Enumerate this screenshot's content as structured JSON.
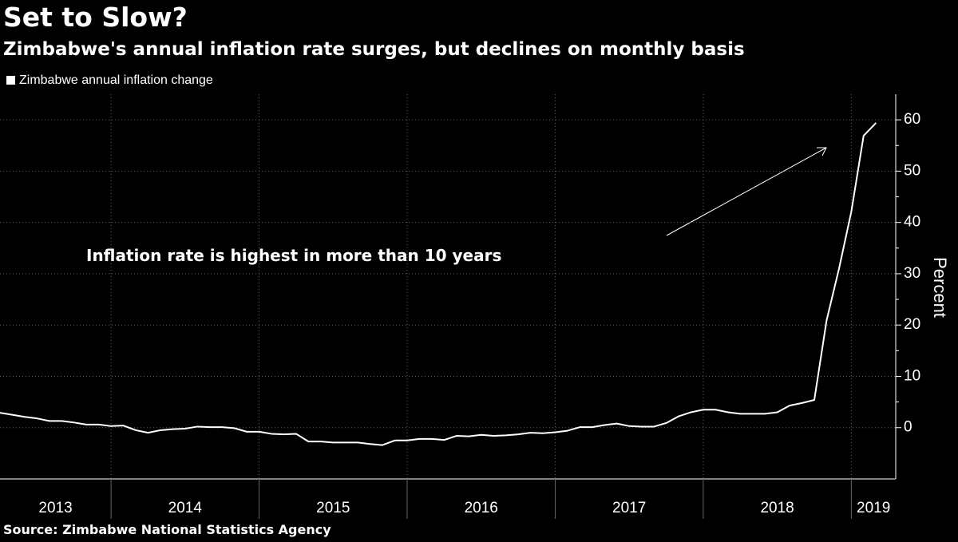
{
  "chart_data": {
    "type": "line",
    "title": "Set to Slow?",
    "subtitle": "Zimbabwe's annual inflation rate surges, but declines on monthly basis",
    "annotation": "Inflation rate is highest in more than 10 years",
    "y_axis_label": "Percent",
    "source": "Source: Zimbabwe National Statistics Agency",
    "x": [
      2013.25,
      2013.333,
      2013.417,
      2013.5,
      2013.583,
      2013.667,
      2013.75,
      2013.833,
      2013.917,
      2014.0,
      2014.083,
      2014.167,
      2014.25,
      2014.333,
      2014.417,
      2014.5,
      2014.583,
      2014.667,
      2014.75,
      2014.833,
      2014.917,
      2015.0,
      2015.083,
      2015.167,
      2015.25,
      2015.333,
      2015.417,
      2015.5,
      2015.583,
      2015.667,
      2015.75,
      2015.833,
      2015.917,
      2016.0,
      2016.083,
      2016.167,
      2016.25,
      2016.333,
      2016.417,
      2016.5,
      2016.583,
      2016.667,
      2016.75,
      2016.833,
      2016.917,
      2017.0,
      2017.083,
      2017.167,
      2017.25,
      2017.333,
      2017.417,
      2017.5,
      2017.583,
      2017.667,
      2017.75,
      2017.833,
      2017.917,
      2018.0,
      2018.083,
      2018.167,
      2018.25,
      2018.333,
      2018.417,
      2018.5,
      2018.583,
      2018.667,
      2018.75,
      2018.833,
      2018.917,
      2019.0,
      2019.083,
      2019.167
    ],
    "series": [
      {
        "name": "Zimbabwe annual inflation change",
        "color": "#ffffff",
        "values": [
          2.9,
          2.5,
          2.1,
          1.8,
          1.3,
          1.3,
          1.0,
          0.6,
          0.6,
          0.3,
          0.4,
          -0.5,
          -1.0,
          -0.5,
          -0.3,
          -0.2,
          0.2,
          0.1,
          0.1,
          -0.1,
          -0.8,
          -0.8,
          -1.2,
          -1.3,
          -1.2,
          -2.7,
          -2.7,
          -2.9,
          -2.9,
          -2.9,
          -3.2,
          -3.4,
          -2.5,
          -2.5,
          -2.2,
          -2.2,
          -2.4,
          -1.6,
          -1.7,
          -1.4,
          -1.6,
          -1.5,
          -1.3,
          -1.0,
          -1.1,
          -0.9,
          -0.6,
          0.1,
          0.1,
          0.5,
          0.8,
          0.3,
          0.2,
          0.2,
          0.9,
          2.2,
          3.0,
          3.5,
          3.5,
          3.0,
          2.7,
          2.7,
          2.7,
          3.0,
          4.3,
          4.8,
          5.4,
          20.9,
          31.0,
          42.1,
          56.9,
          59.4
        ]
      }
    ],
    "xlim": [
      2013.25,
      2019.3
    ],
    "xticks": [
      2013,
      2014,
      2015,
      2016,
      2017,
      2018,
      2019
    ],
    "ylim": [
      -10,
      65
    ],
    "yticks": [
      0,
      10,
      20,
      30,
      40,
      50,
      60
    ],
    "grid": true,
    "legend": "top-left"
  }
}
